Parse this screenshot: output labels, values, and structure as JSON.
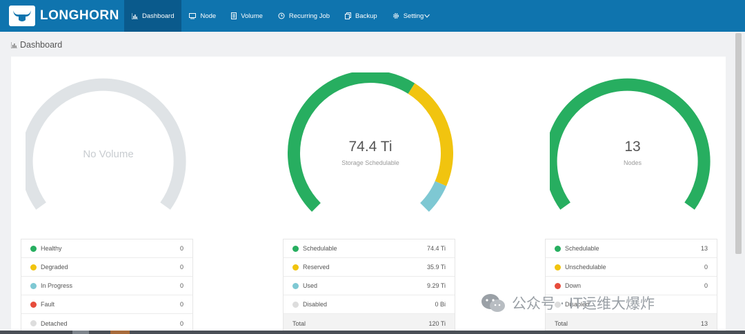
{
  "app": {
    "logo_text": "LONGHORN"
  },
  "nav": [
    {
      "label": "Dashboard",
      "icon": "bar-chart-icon",
      "active": true
    },
    {
      "label": "Node",
      "icon": "monitor-icon"
    },
    {
      "label": "Volume",
      "icon": "disk-icon"
    },
    {
      "label": "Recurring Job",
      "icon": "clock-icon"
    },
    {
      "label": "Backup",
      "icon": "backup-icon"
    },
    {
      "label": "Setting",
      "icon": "gear-icon"
    }
  ],
  "page_title": "Dashboard",
  "gauges": {
    "volume": {
      "empty_text": "No Volume"
    },
    "storage": {
      "value": "74.4 Ti",
      "label": "Storage Schedulable",
      "fractions": {
        "schedulable": 0.62,
        "reserved": 0.3,
        "used": 0.08
      }
    },
    "nodes": {
      "value": "13",
      "label": "Nodes"
    }
  },
  "legends": {
    "volume": [
      {
        "label": "Healthy",
        "value": "0",
        "color": "#27ae60"
      },
      {
        "label": "Degraded",
        "value": "0",
        "color": "#f1c40f"
      },
      {
        "label": "In Progress",
        "value": "0",
        "color": "#7ec8d3"
      },
      {
        "label": "Fault",
        "value": "0",
        "color": "#e74c3c"
      },
      {
        "label": "Detached",
        "value": "0",
        "color": "#dddddd"
      }
    ],
    "storage": [
      {
        "label": "Schedulable",
        "value": "74.4 Ti",
        "color": "#27ae60"
      },
      {
        "label": "Reserved",
        "value": "35.9 Ti",
        "color": "#f1c40f"
      },
      {
        "label": "Used",
        "value": "9.29 Ti",
        "color": "#7ec8d3"
      },
      {
        "label": "Disabled",
        "value": "0 Bi",
        "color": "#dddddd"
      }
    ],
    "storage_total": {
      "label": "Total",
      "value": "120 Ti"
    },
    "nodes": [
      {
        "label": "Schedulable",
        "value": "13",
        "color": "#27ae60"
      },
      {
        "label": "Unschedulable",
        "value": "0",
        "color": "#f1c40f"
      },
      {
        "label": "Down",
        "value": "0",
        "color": "#e74c3c"
      },
      {
        "label": "Disabled",
        "value": "",
        "color": "#dddddd"
      }
    ],
    "nodes_total": {
      "label": "Total",
      "value": "13"
    }
  },
  "watermark": {
    "text": "公众号 · IT运维大爆炸"
  },
  "colors": {
    "brand": "#0f74ae",
    "green": "#27ae60",
    "yellow": "#f1c40f",
    "teal": "#7ec8d3",
    "gray": "#dfe3e6"
  }
}
